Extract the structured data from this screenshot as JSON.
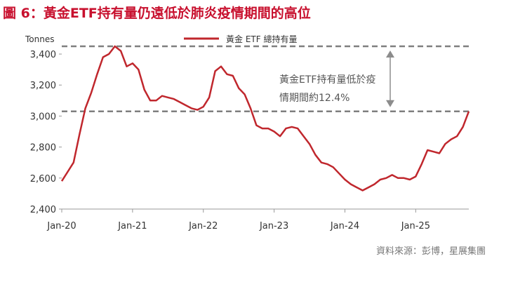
{
  "figure_title": "圖 6：黃金ETF持有量仍遠低於肺炎疫情期間的高位",
  "source": "資料來源：彭博，星展集團",
  "colors": {
    "title": "#c8102e",
    "series": "#c0272d",
    "reference_line": "#7f7f7f",
    "axis": "#999999",
    "text": "#333333"
  },
  "chart_data": {
    "type": "line",
    "title": "",
    "ylabel": "Tonnes",
    "xlabel": "",
    "ylim": [
      2400,
      3450
    ],
    "yticks": [
      2400,
      2600,
      2800,
      3000,
      3200,
      3400
    ],
    "ytick_labels": [
      "2,400",
      "2,600",
      "2,800",
      "3,000",
      "3,200",
      "3,400"
    ],
    "xlim": [
      "2020-01",
      "2025-10"
    ],
    "xticks": [
      "2020-01",
      "2021-01",
      "2022-01",
      "2023-01",
      "2024-01",
      "2025-01"
    ],
    "xtick_labels": [
      "Jan-20",
      "Jan-21",
      "Jan-22",
      "Jan-23",
      "Jan-24",
      "Jan-25"
    ],
    "grid": false,
    "legend_position": "top-center",
    "series": [
      {
        "name": "黃金 ETF 總持有量",
        "x": [
          "2020-01",
          "2020-02",
          "2020-03",
          "2020-04",
          "2020-05",
          "2020-06",
          "2020-07",
          "2020-08",
          "2020-09",
          "2020-10",
          "2020-11",
          "2020-12",
          "2021-01",
          "2021-02",
          "2021-03",
          "2021-04",
          "2021-05",
          "2021-06",
          "2021-07",
          "2021-08",
          "2021-09",
          "2021-10",
          "2021-11",
          "2021-12",
          "2022-01",
          "2022-02",
          "2022-03",
          "2022-04",
          "2022-05",
          "2022-06",
          "2022-07",
          "2022-08",
          "2022-09",
          "2022-10",
          "2022-11",
          "2022-12",
          "2023-01",
          "2023-02",
          "2023-03",
          "2023-04",
          "2023-05",
          "2023-06",
          "2023-07",
          "2023-08",
          "2023-09",
          "2023-10",
          "2023-11",
          "2023-12",
          "2024-01",
          "2024-02",
          "2024-03",
          "2024-04",
          "2024-05",
          "2024-06",
          "2024-07",
          "2024-08",
          "2024-09",
          "2024-10",
          "2024-11",
          "2024-12",
          "2025-01",
          "2025-02",
          "2025-03",
          "2025-04",
          "2025-05",
          "2025-06",
          "2025-07",
          "2025-08",
          "2025-09",
          "2025-10"
        ],
        "values": [
          2580,
          2640,
          2700,
          2880,
          3050,
          3150,
          3270,
          3380,
          3400,
          3450,
          3420,
          3320,
          3340,
          3300,
          3170,
          3100,
          3100,
          3130,
          3120,
          3110,
          3090,
          3070,
          3050,
          3040,
          3060,
          3120,
          3290,
          3320,
          3270,
          3260,
          3180,
          3140,
          3050,
          2940,
          2920,
          2920,
          2900,
          2870,
          2920,
          2930,
          2920,
          2870,
          2820,
          2750,
          2700,
          2690,
          2670,
          2630,
          2590,
          2560,
          2540,
          2520,
          2540,
          2560,
          2590,
          2600,
          2620,
          2600,
          2600,
          2590,
          2610,
          2690,
          2780,
          2770,
          2760,
          2820,
          2850,
          2870,
          2930,
          3030
        ]
      }
    ],
    "reference_lines": [
      {
        "y": 3450
      },
      {
        "y": 3030
      }
    ],
    "annotation": {
      "lines": [
        "黃金ETF持有量低於疫",
        "情期間約12.4%"
      ]
    }
  }
}
